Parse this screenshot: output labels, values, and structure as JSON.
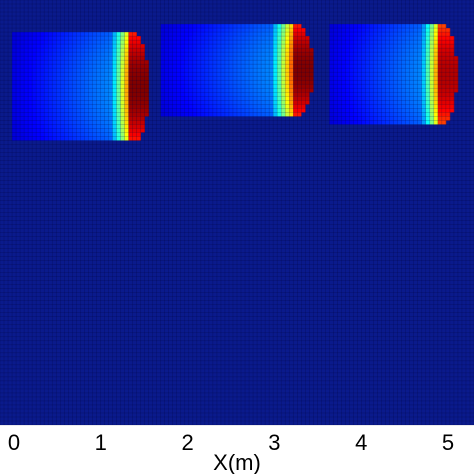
{
  "chart_data": {
    "type": "heatmap",
    "xlabel": "X(m)",
    "x_ticks": [
      0,
      1,
      2,
      3,
      4,
      5
    ],
    "xlim": [
      0.0,
      5.1
    ],
    "grid": true,
    "colormap": "jet",
    "background_color": "#0a1a8c",
    "blobs": [
      {
        "x_start": 0.0,
        "x_front": 1.55,
        "y_top": 0.92,
        "y_bottom": 0.67,
        "peak": 1.0
      },
      {
        "x_start": 1.7,
        "x_front": 3.45,
        "y_top": 0.94,
        "y_bottom": 0.73,
        "peak": 1.0
      },
      {
        "x_start": 3.65,
        "x_front": 5.1,
        "y_top": 0.94,
        "y_bottom": 0.71,
        "peak": 0.95
      }
    ]
  }
}
